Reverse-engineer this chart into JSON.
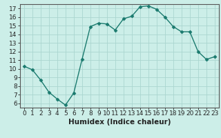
{
  "x": [
    0,
    1,
    2,
    3,
    4,
    5,
    6,
    7,
    8,
    9,
    10,
    11,
    12,
    13,
    14,
    15,
    16,
    17,
    18,
    19,
    20,
    21,
    22,
    23
  ],
  "y": [
    10.3,
    9.9,
    8.7,
    7.3,
    6.5,
    5.8,
    7.2,
    11.1,
    14.9,
    15.3,
    15.2,
    14.5,
    15.8,
    16.1,
    17.2,
    17.3,
    16.9,
    16.0,
    14.9,
    14.3,
    14.3,
    12.0,
    11.1,
    11.4
  ],
  "line_color": "#1a7a6e",
  "marker": "D",
  "marker_size": 2.5,
  "bg_color": "#cceee8",
  "grid_color": "#aad6cf",
  "xlabel": "Humidex (Indice chaleur)",
  "xlim": [
    -0.5,
    23.5
  ],
  "ylim": [
    5.5,
    17.5
  ],
  "yticks": [
    6,
    7,
    8,
    9,
    10,
    11,
    12,
    13,
    14,
    15,
    16,
    17
  ],
  "xticks": [
    0,
    1,
    2,
    3,
    4,
    5,
    6,
    7,
    8,
    9,
    10,
    11,
    12,
    13,
    14,
    15,
    16,
    17,
    18,
    19,
    20,
    21,
    22,
    23
  ],
  "tick_fontsize": 6.5,
  "label_fontsize": 7.5,
  "spine_color": "#555555"
}
